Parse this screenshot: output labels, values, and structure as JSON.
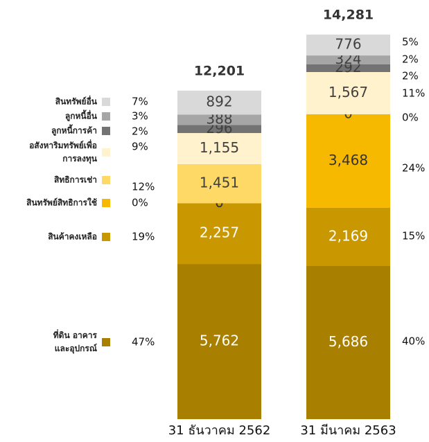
{
  "chart_data": {
    "type": "stacked_bar",
    "categories": [
      "31 ธันวาคม 2562",
      "31 มีนาคม 2563"
    ],
    "ylim": [
      0,
      15000
    ],
    "totals": [
      12201,
      14281
    ],
    "total_labels": [
      "12,201",
      "14,281"
    ],
    "series": [
      {
        "name": "ที่ดิน อาคาร\nและอุปกรณ์",
        "color": "#a97f00",
        "label_color": "#ffffff",
        "values": [
          5762,
          5686
        ],
        "value_labels": [
          "5,762",
          "5,686"
        ],
        "percent_labels": [
          "47%",
          "40%"
        ]
      },
      {
        "name": "สินค้าคงเหลือ",
        "color": "#c99700",
        "label_color": "#ffffff",
        "values": [
          2257,
          2169
        ],
        "value_labels": [
          "2,257",
          "2,169"
        ],
        "percent_labels": [
          "19%",
          "15%"
        ]
      },
      {
        "name": "สินทรัพย์สิทธิการใช้",
        "color": "#f6b900",
        "label_color": "#333333",
        "values": [
          0,
          3468
        ],
        "value_labels": [
          "0",
          "3,468"
        ],
        "percent_labels": [
          "0%",
          "24%"
        ]
      },
      {
        "name": "สิทธิการเช่า",
        "color": "#ffd966",
        "label_color": "#404040",
        "values": [
          1451,
          0
        ],
        "value_labels": [
          "1,451",
          "0"
        ],
        "percent_labels": [
          "12%",
          "0%"
        ]
      },
      {
        "name": "อสังหาริมทรัพย์เพื่อ\nการลงทุน",
        "color": "#fff2cc",
        "label_color": "#404040",
        "values": [
          1155,
          1567
        ],
        "value_labels": [
          "1,155",
          "1,567"
        ],
        "percent_labels": [
          "9%",
          "11%"
        ]
      },
      {
        "name": "ลูกหนี้การค้า",
        "color": "#737373",
        "label_color": "#404040",
        "values": [
          296,
          292
        ],
        "value_labels": [
          "296",
          "292"
        ],
        "percent_labels": [
          "2%",
          "2%"
        ]
      },
      {
        "name": "ลูกหนี้อื่น",
        "color": "#a6a6a6",
        "label_color": "#404040",
        "values": [
          388,
          324
        ],
        "value_labels": [
          "388",
          "324"
        ],
        "percent_labels": [
          "3%",
          "2%"
        ]
      },
      {
        "name": "สินทรัพย์อื่น",
        "color": "#d9d9d9",
        "label_color": "#404040",
        "values": [
          892,
          776
        ],
        "value_labels": [
          "892",
          "776"
        ],
        "percent_labels": [
          "7%",
          "5%"
        ]
      }
    ]
  }
}
